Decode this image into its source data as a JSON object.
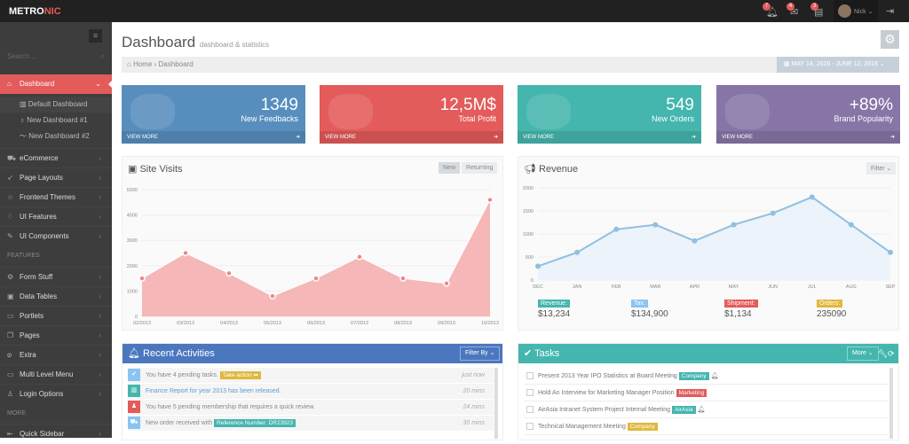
{
  "header": {
    "logo_main": "METRO",
    "logo_accent": "NIC",
    "notifications": "7",
    "inbox": "4",
    "tasks": "3",
    "user": "Nick"
  },
  "sidebar": {
    "search_placeholder": "Search...",
    "dashboard": "Dashboard",
    "subitems": [
      "Default Dashboard",
      "New Dashboard #1",
      "New Dashboard #2"
    ],
    "items": [
      "eCommerce",
      "Page Layouts",
      "Frontend Themes",
      "UI Features",
      "UI Components"
    ],
    "features_heading": "FEATURES",
    "feature_items": [
      "Form Stuff",
      "Data Tables",
      "Portlets",
      "Pages",
      "Extra",
      "Multi Level Menu",
      "Login Options"
    ],
    "more_heading": "MORE",
    "more_items": [
      "Quick Sidebar"
    ]
  },
  "page": {
    "title": "Dashboard",
    "subtitle": "dashboard & statistics",
    "breadcrumb": [
      "Home",
      "Dashboard"
    ],
    "date_range": "MAY 14, 2016 - JUNE 12, 2016"
  },
  "stats": [
    {
      "value": "1349",
      "label": "New Feedbacks",
      "link": "VIEW MORE",
      "color": "#578ebe"
    },
    {
      "value": "12,5M$",
      "label": "Total Profit",
      "link": "VIEW MORE",
      "color": "#e35b5a"
    },
    {
      "value": "549",
      "label": "New Orders",
      "link": "VIEW MORE",
      "color": "#44b6ae"
    },
    {
      "value": "+89%",
      "label": "Brand Popularity",
      "link": "VIEW MORE",
      "color": "#8775a7"
    }
  ],
  "site_visits": {
    "title": "Site Visits",
    "btn_new": "New",
    "btn_returning": "Returning"
  },
  "revenue": {
    "title": "Revenue",
    "filter": "Filter",
    "summary": [
      {
        "label": "Revenue:",
        "value": "$13,234",
        "color": "#44b6ae"
      },
      {
        "label": "Tax:",
        "value": "$134,900",
        "color": "#89c4f4"
      },
      {
        "label": "Shipment:",
        "value": "$1,134",
        "color": "#e35b5a"
      },
      {
        "label": "Orders:",
        "value": "235090",
        "color": "#e0b83c"
      }
    ]
  },
  "chart_data": [
    {
      "type": "area",
      "categories": [
        "02/2013",
        "03/2013",
        "04/2013",
        "05/2013",
        "06/2013",
        "07/2013",
        "08/2013",
        "09/2013",
        "10/2013"
      ],
      "values": [
        1500,
        2500,
        1700,
        800,
        1500,
        2350,
        1500,
        1300,
        4600
      ],
      "ylim": [
        0,
        5000
      ],
      "yticks": [
        0,
        1000,
        2000,
        3000,
        4000,
        5000
      ],
      "color": "#f4a6a6",
      "grid": true
    },
    {
      "type": "line",
      "categories": [
        "DEC",
        "JAN",
        "FEB",
        "MAR",
        "APR",
        "MAY",
        "JUN",
        "JUL",
        "AUG",
        "SEP"
      ],
      "values": [
        300,
        600,
        1100,
        1200,
        850,
        1200,
        1450,
        1800,
        1200,
        600
      ],
      "ylim": [
        0,
        2000
      ],
      "yticks": [
        0,
        500,
        1000,
        1500,
        2000
      ],
      "color": "#8fc0e0",
      "grid": true
    }
  ],
  "activities": {
    "title": "Recent Activities",
    "filter": "Filter By",
    "items": [
      {
        "text": "You have 4 pending tasks.",
        "tag": "Take action",
        "time": "just now",
        "color": "#89c4f4",
        "icon": "check"
      },
      {
        "text": "Finance Report for year 2013 has been released.",
        "tag": "",
        "time": "20 mins",
        "color": "#44b6ae",
        "icon": "chart"
      },
      {
        "text": "You have 5 pending membership that requires a quick review.",
        "tag": "",
        "time": "24 mins",
        "color": "#e35b5a",
        "icon": "user"
      },
      {
        "text": "New order received with",
        "tag": "Reference Number: DR23923",
        "time": "30 mins",
        "color": "#89c4f4",
        "icon": "cart"
      }
    ]
  },
  "tasks": {
    "title": "Tasks",
    "more": "More",
    "items": [
      {
        "text": "Present 2013 Year IPO Statistics at Board Meeting",
        "tag": "Company",
        "color": "#44b6ae",
        "bell": true
      },
      {
        "text": "Hold An Interview for Marketing Manager Position",
        "tag": "Marketing",
        "color": "#e35b5a",
        "bell": false
      },
      {
        "text": "AirAsia Intranet System Project Internal Meeting",
        "tag": "AirAsia",
        "color": "#44b6ae",
        "bell": true
      },
      {
        "text": "Technical Management Meeting",
        "tag": "Company",
        "color": "#e0b83c",
        "bell": false
      }
    ]
  }
}
